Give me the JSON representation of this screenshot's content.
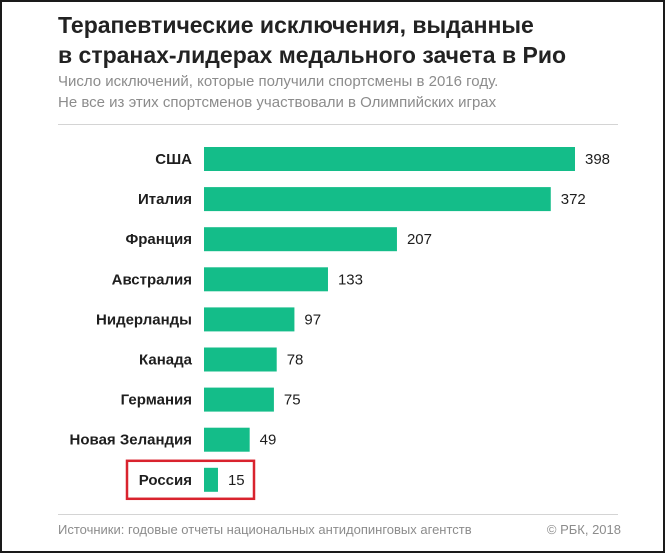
{
  "header": {
    "title_line1": "Терапевтические исключения, выданные",
    "title_line2": "в странах-лидерах медального зачета в Рио",
    "subtitle_line1": "Число исключений, которые получили спортсмены в 2016 году.",
    "subtitle_line2": "Не все из этих спортсменов участвовали в Олимпийских играх"
  },
  "footer": {
    "source": "Источники: годовые отчеты национальных антидопинговых агентств",
    "copyright": "© РБК, 2018"
  },
  "colors": {
    "bar": "#14bd89",
    "highlight": "#d9232e",
    "label": "#1e1e1e",
    "value": "#1e1e1e"
  },
  "chart_data": {
    "type": "bar",
    "orientation": "horizontal",
    "categories": [
      "США",
      "Италия",
      "Франция",
      "Австралия",
      "Нидерланды",
      "Канада",
      "Германия",
      "Новая Зеландия",
      "Россия"
    ],
    "values": [
      398,
      372,
      207,
      133,
      97,
      78,
      75,
      49,
      15
    ],
    "highlighted_category": "Россия",
    "xlim": [
      0,
      398
    ],
    "grid": false,
    "legend": "none"
  }
}
